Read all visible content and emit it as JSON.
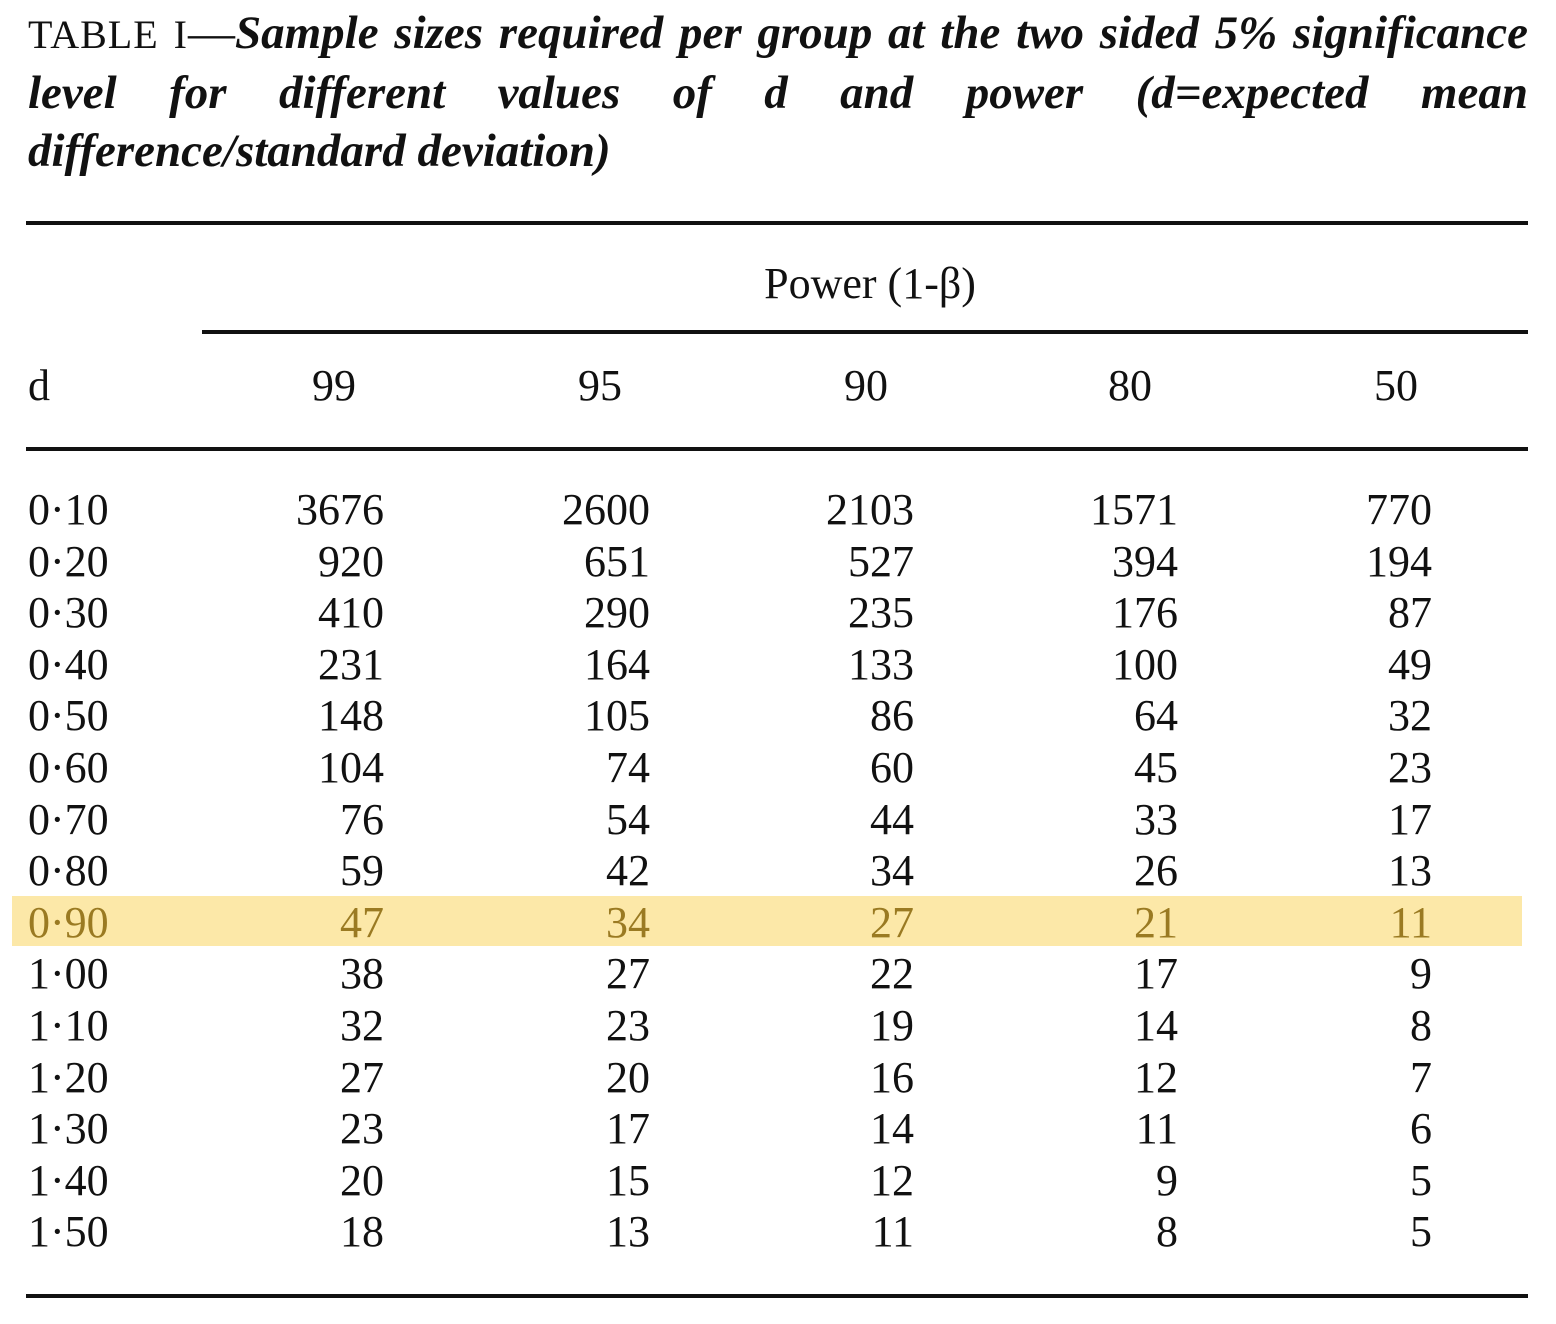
{
  "caption": {
    "label": "TABLE I",
    "dash": "—",
    "title": "Sample sizes required per group at the two sided 5% significance level for different values of d and power (d=expected mean difference/standard deviation)"
  },
  "table": {
    "spanner": "Power (1-β)",
    "row_header": "d",
    "columns": [
      "99",
      "95",
      "90",
      "80",
      "50"
    ],
    "highlight_color": "#fce8a8",
    "highlighted_row": "0·90",
    "rows": [
      {
        "d": "0·10",
        "values": [
          "3676",
          "2600",
          "2103",
          "1571",
          "770"
        ]
      },
      {
        "d": "0·20",
        "values": [
          "920",
          "651",
          "527",
          "394",
          "194"
        ]
      },
      {
        "d": "0·30",
        "values": [
          "410",
          "290",
          "235",
          "176",
          "87"
        ]
      },
      {
        "d": "0·40",
        "values": [
          "231",
          "164",
          "133",
          "100",
          "49"
        ]
      },
      {
        "d": "0·50",
        "values": [
          "148",
          "105",
          "86",
          "64",
          "32"
        ]
      },
      {
        "d": "0·60",
        "values": [
          "104",
          "74",
          "60",
          "45",
          "23"
        ]
      },
      {
        "d": "0·70",
        "values": [
          "76",
          "54",
          "44",
          "33",
          "17"
        ]
      },
      {
        "d": "0·80",
        "values": [
          "59",
          "42",
          "34",
          "26",
          "13"
        ]
      },
      {
        "d": "0·90",
        "values": [
          "47",
          "34",
          "27",
          "21",
          "11"
        ]
      },
      {
        "d": "1·00",
        "values": [
          "38",
          "27",
          "22",
          "17",
          "9"
        ]
      },
      {
        "d": "1·10",
        "values": [
          "32",
          "23",
          "19",
          "14",
          "8"
        ]
      },
      {
        "d": "1·20",
        "values": [
          "27",
          "20",
          "16",
          "12",
          "7"
        ]
      },
      {
        "d": "1·30",
        "values": [
          "23",
          "17",
          "14",
          "11",
          "6"
        ]
      },
      {
        "d": "1·40",
        "values": [
          "20",
          "15",
          "12",
          "9",
          "5"
        ]
      },
      {
        "d": "1·50",
        "values": [
          "18",
          "13",
          "11",
          "8",
          "5"
        ]
      }
    ]
  }
}
